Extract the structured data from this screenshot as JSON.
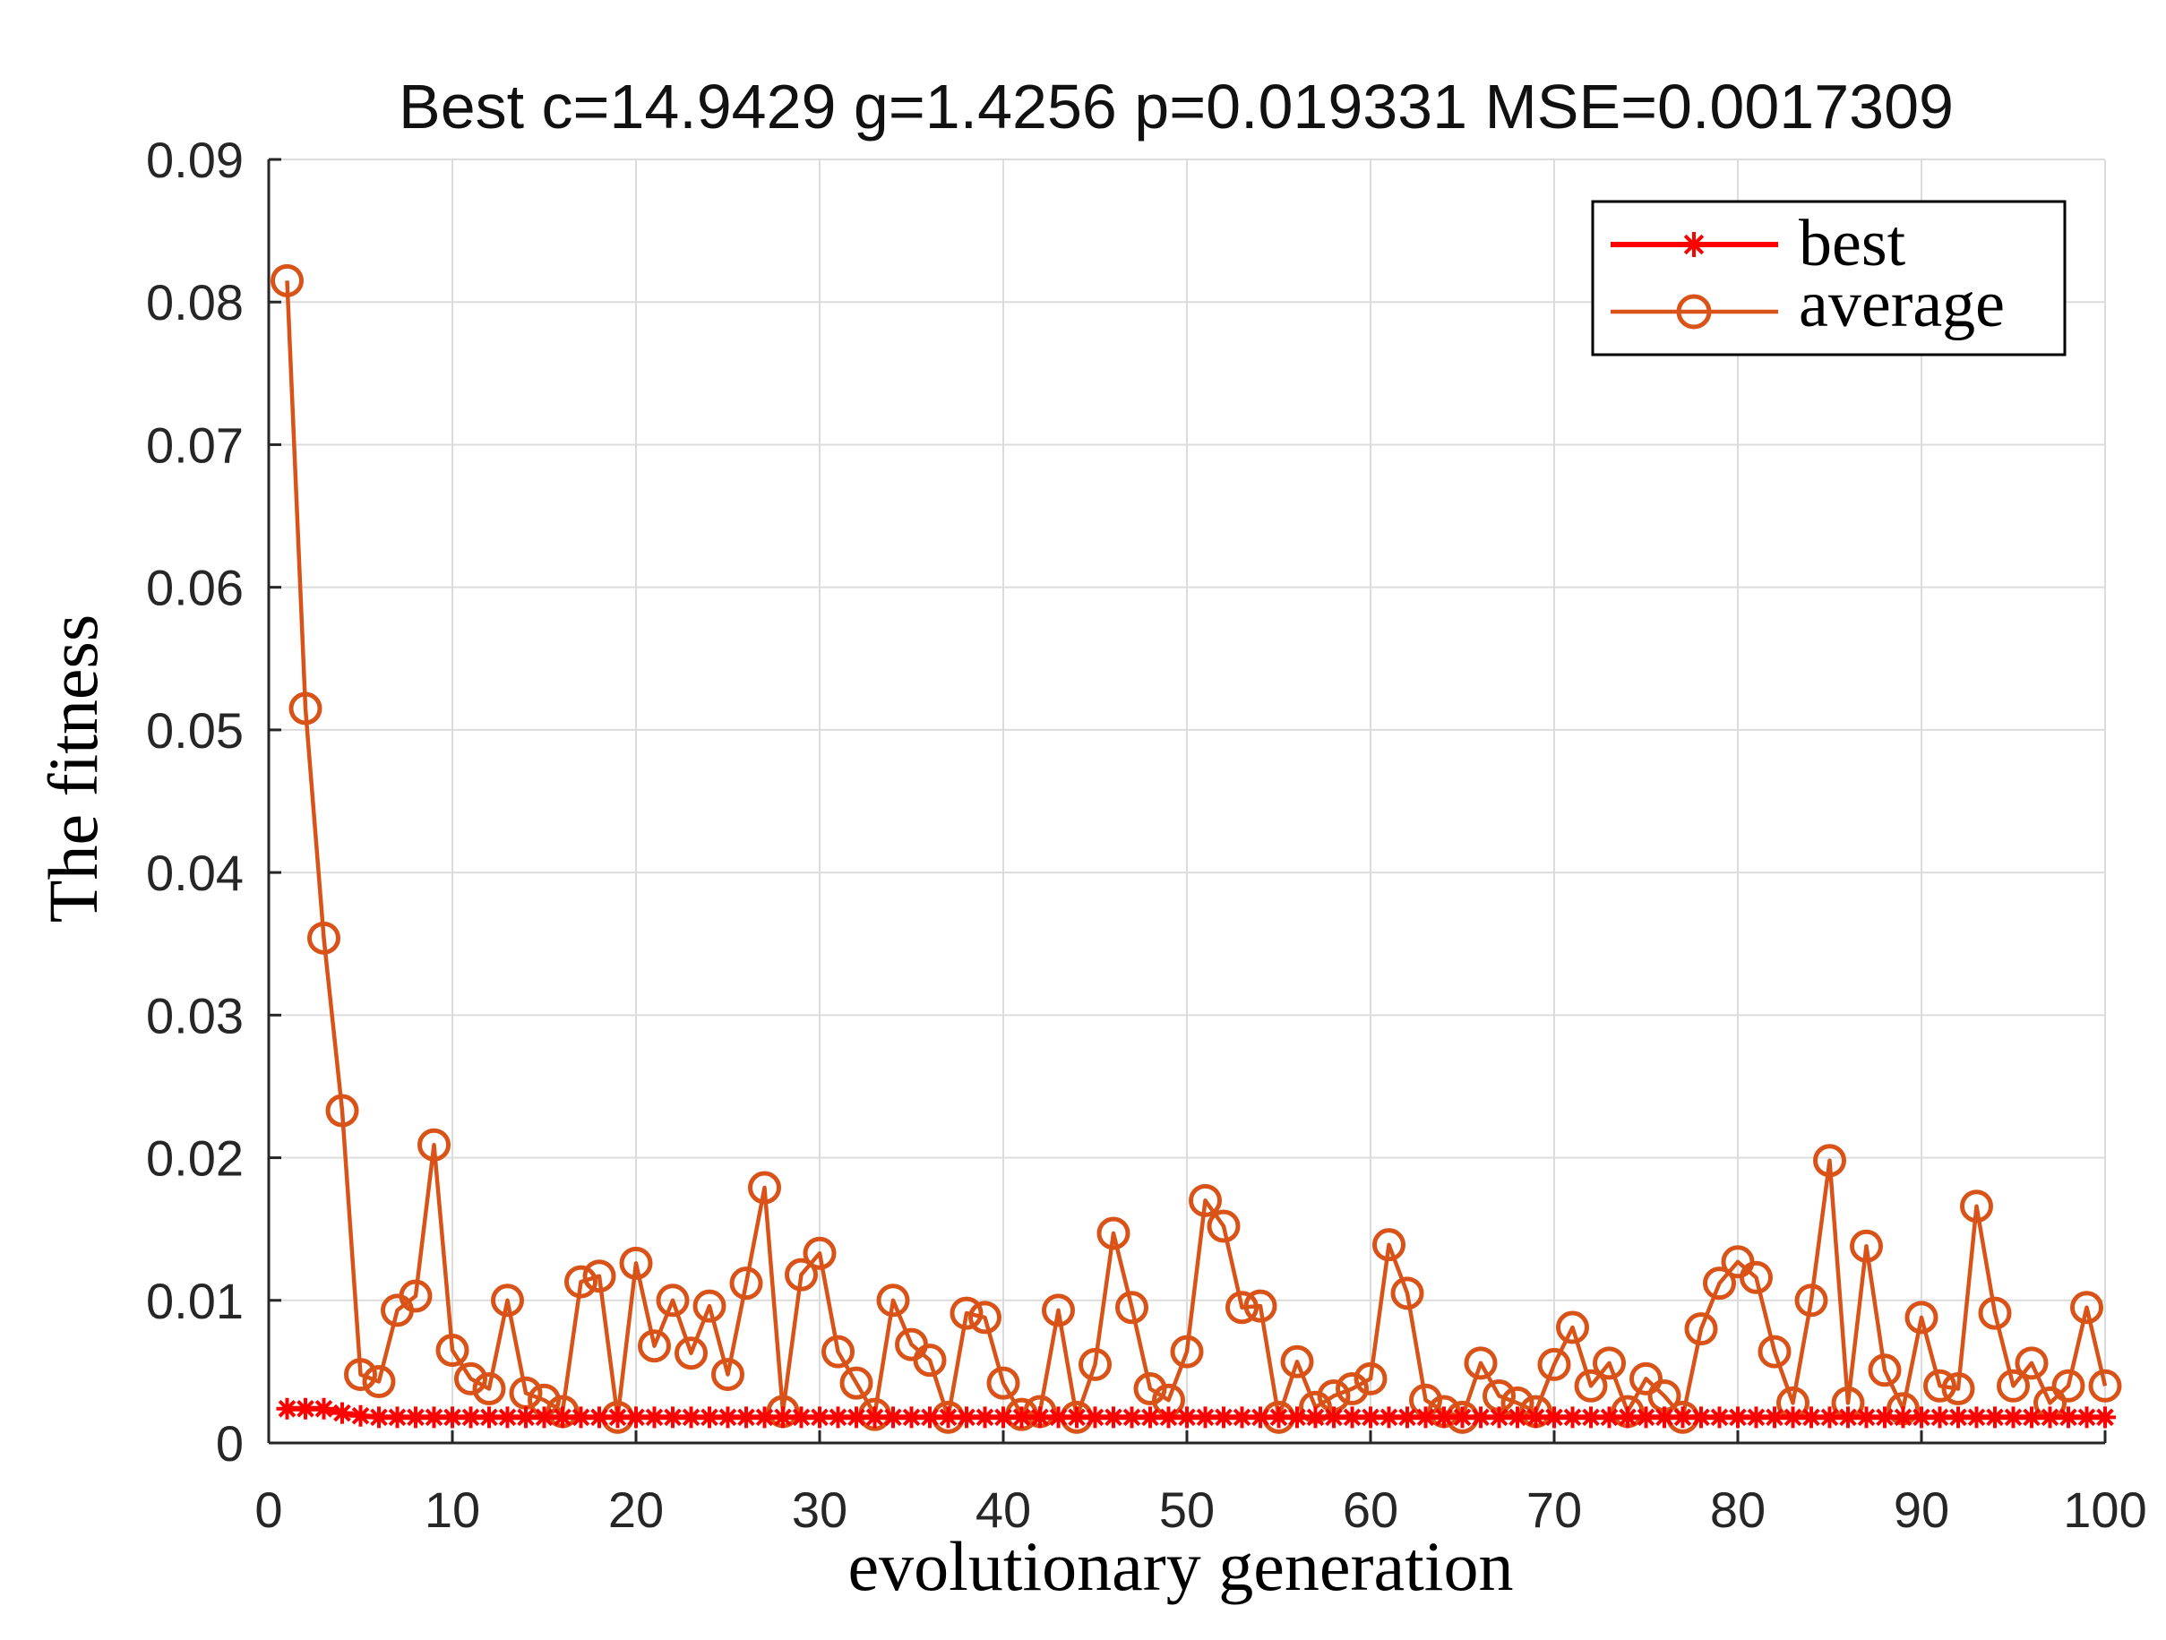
{
  "chart_data": {
    "type": "line",
    "title": "Best c=14.9429 g=1.4256 p=0.019331 MSE=0.0017309",
    "xlabel": "evolutionary generation",
    "ylabel": "The fitness",
    "xlim": [
      0,
      100
    ],
    "ylim": [
      0,
      0.09
    ],
    "xticks": [
      0,
      10,
      20,
      30,
      40,
      50,
      60,
      70,
      80,
      90,
      100
    ],
    "yticks": [
      0,
      0.01,
      0.02,
      0.03,
      0.04,
      0.05,
      0.06,
      0.07,
      0.08,
      0.09
    ],
    "xtick_labels": [
      "0",
      "10",
      "20",
      "30",
      "40",
      "50",
      "60",
      "70",
      "80",
      "90",
      "100"
    ],
    "ytick_labels": [
      "0",
      "0.01",
      "0.02",
      "0.03",
      "0.04",
      "0.05",
      "0.06",
      "0.07",
      "0.08",
      "0.09"
    ],
    "grid": true,
    "legend_position": "top-right",
    "series": [
      {
        "name": "best",
        "color": "#ff0000",
        "marker": "asterisk",
        "x": [
          1,
          2,
          3,
          4,
          5,
          6,
          7,
          8,
          9,
          10,
          11,
          12,
          13,
          14,
          15,
          16,
          17,
          18,
          19,
          20,
          21,
          22,
          23,
          24,
          25,
          26,
          27,
          28,
          29,
          30,
          31,
          32,
          33,
          34,
          35,
          36,
          37,
          38,
          39,
          40,
          41,
          42,
          43,
          44,
          45,
          46,
          47,
          48,
          49,
          50,
          51,
          52,
          53,
          54,
          55,
          56,
          57,
          58,
          59,
          60,
          61,
          62,
          63,
          64,
          65,
          66,
          67,
          68,
          69,
          70,
          71,
          72,
          73,
          74,
          75,
          76,
          77,
          78,
          79,
          80,
          81,
          82,
          83,
          84,
          85,
          86,
          87,
          88,
          89,
          90,
          91,
          92,
          93,
          94,
          95,
          96,
          97,
          98,
          99,
          100
        ],
        "values": [
          0.0024,
          0.0024,
          0.0024,
          0.0021,
          0.0019,
          0.0018,
          0.0018,
          0.0018,
          0.0018,
          0.0018,
          0.0018,
          0.0018,
          0.0018,
          0.0018,
          0.0018,
          0.0018,
          0.0018,
          0.0018,
          0.0018,
          0.0018,
          0.0018,
          0.0018,
          0.0018,
          0.0018,
          0.0018,
          0.0018,
          0.0018,
          0.0018,
          0.0018,
          0.0018,
          0.0018,
          0.0018,
          0.0018,
          0.0018,
          0.0018,
          0.0018,
          0.0018,
          0.0018,
          0.0018,
          0.0018,
          0.0018,
          0.0018,
          0.0018,
          0.0018,
          0.0018,
          0.0018,
          0.0018,
          0.0018,
          0.0018,
          0.0018,
          0.0018,
          0.0018,
          0.0018,
          0.0018,
          0.0018,
          0.0018,
          0.0018,
          0.0018,
          0.0018,
          0.0018,
          0.0018,
          0.0018,
          0.0018,
          0.0018,
          0.0018,
          0.0018,
          0.0018,
          0.0018,
          0.0018,
          0.0018,
          0.0018,
          0.0018,
          0.0018,
          0.0018,
          0.0018,
          0.0018,
          0.0018,
          0.0018,
          0.0018,
          0.0018,
          0.0018,
          0.0018,
          0.0018,
          0.0018,
          0.0018,
          0.0018,
          0.0018,
          0.0018,
          0.0018,
          0.0018,
          0.0018,
          0.0018,
          0.0018,
          0.0018,
          0.0018,
          0.0018,
          0.0018,
          0.0018,
          0.0018,
          0.0018
        ]
      },
      {
        "name": "average",
        "color": "#d95319",
        "marker": "circle",
        "x": [
          1,
          2,
          3,
          4,
          5,
          6,
          7,
          8,
          9,
          10,
          11,
          12,
          13,
          14,
          15,
          16,
          17,
          18,
          19,
          20,
          21,
          22,
          23,
          24,
          25,
          26,
          27,
          28,
          29,
          30,
          31,
          32,
          33,
          34,
          35,
          36,
          37,
          38,
          39,
          40,
          41,
          42,
          43,
          44,
          45,
          46,
          47,
          48,
          49,
          50,
          51,
          52,
          53,
          54,
          55,
          56,
          57,
          58,
          59,
          60,
          61,
          62,
          63,
          64,
          65,
          66,
          67,
          68,
          69,
          70,
          71,
          72,
          73,
          74,
          75,
          76,
          77,
          78,
          79,
          80,
          81,
          82,
          83,
          84,
          85,
          86,
          87,
          88,
          89,
          90,
          91,
          92,
          93,
          94,
          95,
          96,
          97,
          98,
          99,
          100
        ],
        "values": [
          0.0815,
          0.0515,
          0.0354,
          0.0233,
          0.0048,
          0.0043,
          0.0093,
          0.0103,
          0.0209,
          0.0065,
          0.0045,
          0.0038,
          0.01,
          0.0035,
          0.003,
          0.0022,
          0.0113,
          0.0117,
          0.0018,
          0.0126,
          0.0068,
          0.01,
          0.0063,
          0.0096,
          0.0048,
          0.0112,
          0.0179,
          0.0022,
          0.0118,
          0.0133,
          0.0064,
          0.0042,
          0.002,
          0.01,
          0.0069,
          0.0058,
          0.0018,
          0.0091,
          0.0088,
          0.0042,
          0.002,
          0.0022,
          0.0093,
          0.0018,
          0.0055,
          0.0147,
          0.0095,
          0.0038,
          0.003,
          0.0064,
          0.017,
          0.0152,
          0.0095,
          0.0096,
          0.0018,
          0.0057,
          0.0025,
          0.0033,
          0.0038,
          0.0045,
          0.0139,
          0.0105,
          0.003,
          0.0022,
          0.0018,
          0.0056,
          0.0033,
          0.0028,
          0.0022,
          0.0055,
          0.0081,
          0.004,
          0.0056,
          0.0022,
          0.0045,
          0.0033,
          0.0018,
          0.008,
          0.0112,
          0.0127,
          0.0116,
          0.0064,
          0.0028,
          0.01,
          0.0198,
          0.0028,
          0.0138,
          0.0051,
          0.0024,
          0.0088,
          0.004,
          0.0038,
          0.0166,
          0.0091,
          0.004,
          0.0056,
          0.0028,
          0.004,
          0.0095,
          0.004
        ]
      }
    ]
  }
}
